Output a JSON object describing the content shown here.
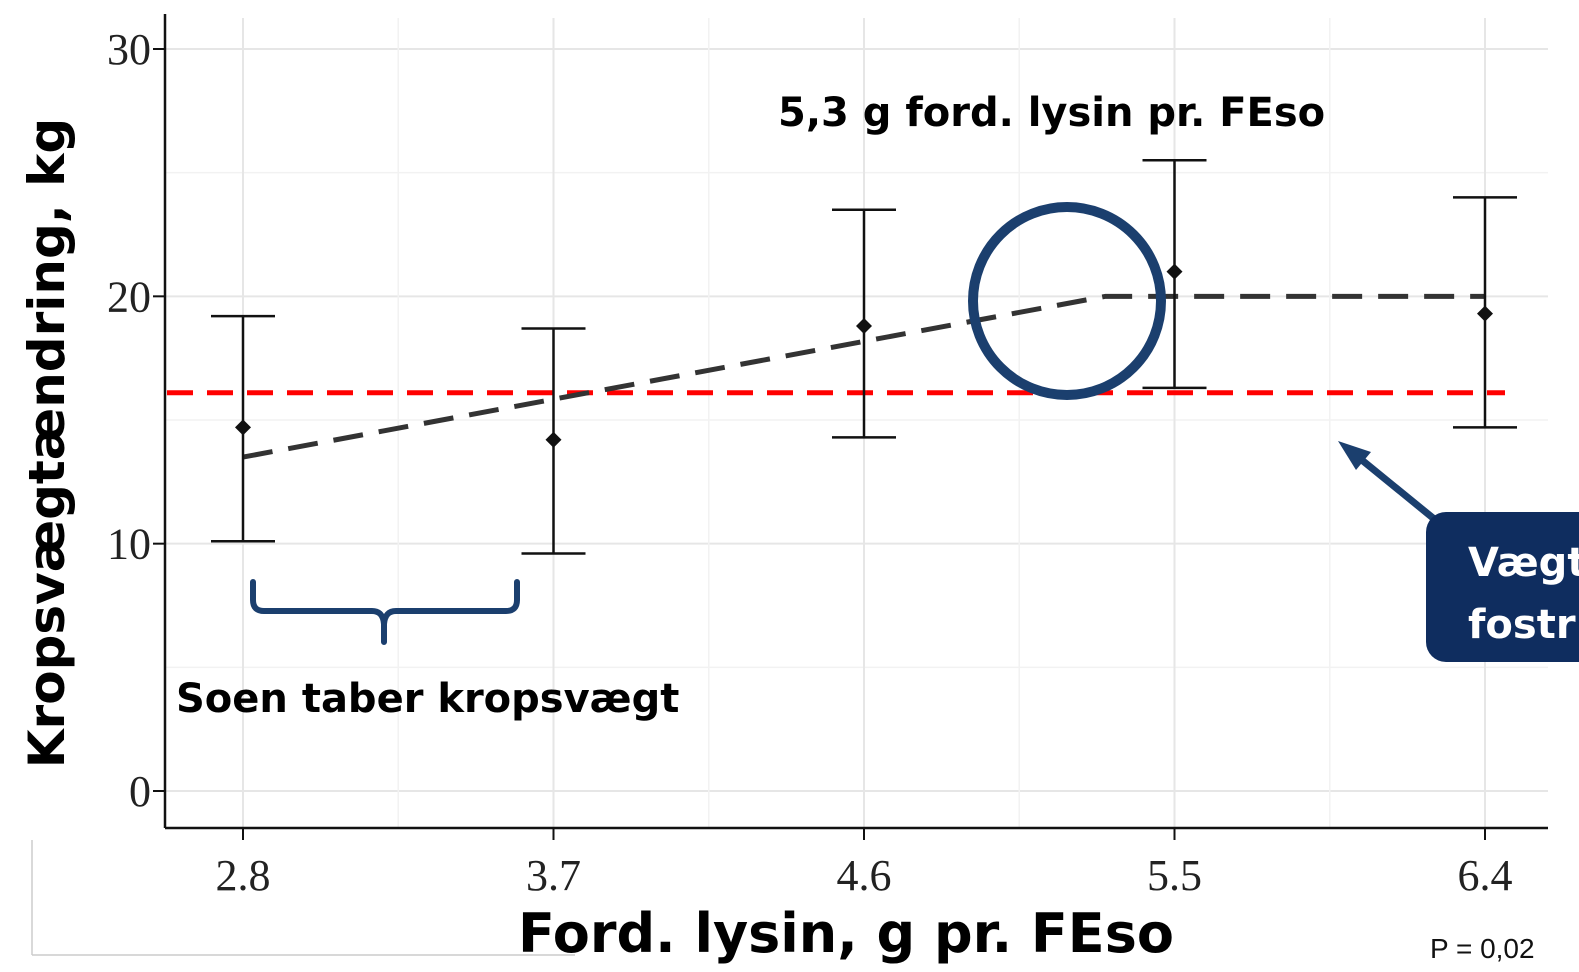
{
  "chart_data": {
    "type": "scatter",
    "x_categories": [
      "2.8",
      "3.7",
      "4.6",
      "5.5",
      "6.4"
    ],
    "x": [
      2.8,
      3.7,
      4.6,
      5.5,
      6.4
    ],
    "means": [
      14.7,
      14.2,
      18.8,
      21.0,
      19.3
    ],
    "error_upper": [
      19.2,
      18.7,
      23.5,
      25.5,
      24.0
    ],
    "error_lower": [
      10.1,
      9.6,
      14.3,
      16.3,
      14.7
    ],
    "ylim": [
      0,
      30
    ],
    "yticks": [
      "0",
      "10",
      "20",
      "30"
    ],
    "xlabel": "Ford. lysin, g pr. FEso",
    "ylabel": "Kropsvægtændring, kg",
    "broken_line": {
      "breakpoint_x": 5.3,
      "plateau_y": 20.0,
      "start": [
        2.8,
        13.5
      ],
      "end": [
        6.4,
        20.0
      ]
    },
    "reference_line_y": 16.1,
    "grid": true,
    "annotations": {
      "breakpoint_label": "5,3 g ford. lysin pr. FEso",
      "loss_label": "Soen taber kropsvægt",
      "callout_line1": "Vægt",
      "callout_line2": "fostr",
      "p_value": "P = 0,02"
    },
    "colors": {
      "reference_line": "#ff0000",
      "highlight": "#1b3f6e",
      "callout_bg": "#0f2d5f",
      "fit_line": "#333333",
      "points": "#111111"
    }
  }
}
